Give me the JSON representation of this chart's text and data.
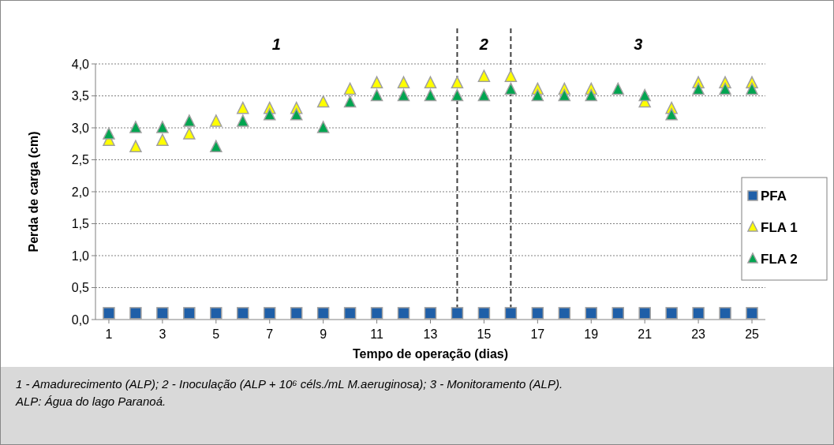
{
  "chart_data": {
    "type": "scatter",
    "xlabel": "Tempo de operação (dias)",
    "ylabel": "Perda de carga (cm)",
    "x": [
      1,
      2,
      3,
      4,
      5,
      6,
      7,
      8,
      9,
      10,
      11,
      12,
      13,
      14,
      15,
      16,
      17,
      18,
      19,
      20,
      21,
      22,
      23,
      24,
      25
    ],
    "xlim": [
      0.5,
      25.5
    ],
    "xticks": [
      1,
      3,
      5,
      7,
      9,
      11,
      13,
      15,
      17,
      19,
      21,
      23,
      25
    ],
    "ylim": [
      0,
      4
    ],
    "yticks": [
      {
        "value": 0,
        "label": "0,0"
      },
      {
        "value": 0.5,
        "label": "0,5"
      },
      {
        "value": 1,
        "label": "1,0"
      },
      {
        "value": 1.5,
        "label": "1,5"
      },
      {
        "value": 2,
        "label": "2,0"
      },
      {
        "value": 2.5,
        "label": "2,5"
      },
      {
        "value": 3,
        "label": "3,0"
      },
      {
        "value": 3.5,
        "label": "3,5"
      },
      {
        "value": 4,
        "label": "4,0"
      }
    ],
    "grid": "y",
    "legend": "right",
    "series": [
      {
        "name": "PFA",
        "color": "#1f5fa8",
        "marker": "square",
        "values": [
          0.1,
          0.1,
          0.1,
          0.1,
          0.1,
          0.1,
          0.1,
          0.1,
          0.1,
          0.1,
          0.1,
          0.1,
          0.1,
          0.1,
          0.1,
          0.1,
          0.1,
          0.1,
          0.1,
          0.1,
          0.1,
          0.1,
          0.1,
          0.1,
          0.1
        ]
      },
      {
        "name": "FLA 1",
        "color": "#ffff00",
        "marker": "triangle",
        "values": [
          2.8,
          2.7,
          2.8,
          2.9,
          3.1,
          3.3,
          3.3,
          3.3,
          3.4,
          3.6,
          3.7,
          3.7,
          3.7,
          3.7,
          3.8,
          3.8,
          3.6,
          3.6,
          3.6,
          null,
          3.4,
          3.3,
          3.7,
          3.7,
          3.7
        ]
      },
      {
        "name": "FLA 2",
        "color": "#00a550",
        "marker": "triangle",
        "values": [
          2.9,
          3.0,
          3.0,
          3.1,
          2.7,
          3.1,
          3.2,
          3.2,
          3.0,
          3.4,
          3.5,
          3.5,
          3.5,
          3.5,
          3.5,
          3.6,
          3.5,
          3.5,
          3.5,
          3.6,
          3.5,
          3.2,
          3.6,
          3.6,
          3.6
        ]
      }
    ],
    "ref_lines": [
      {
        "axis": "x",
        "value": 14,
        "line_style": "dashed",
        "color": "#404040"
      },
      {
        "axis": "x",
        "value": 16,
        "line_style": "dashed",
        "color": "#404040"
      }
    ],
    "annotations": [
      "1",
      "2",
      "3",
      "1 - Amadurecimento (ALP); 2 - Inoculação (ALP + 10⁶ céls./mL M.aeruginosa); 3 - Monitoramento (ALP).",
      "ALP: Água do lago Paranoá."
    ]
  }
}
